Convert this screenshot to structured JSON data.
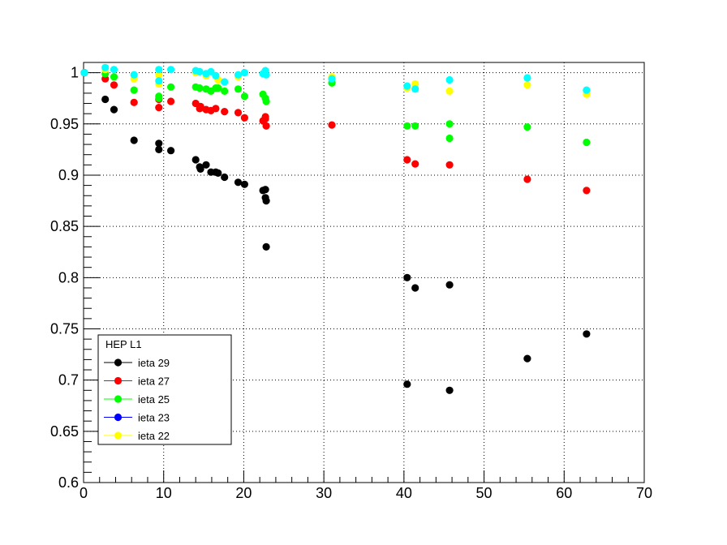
{
  "chart_data": {
    "type": "scatter",
    "title": "",
    "xlabel": "",
    "ylabel": "",
    "xlim": [
      0,
      70
    ],
    "ylim": [
      0.6,
      1.01
    ],
    "x_ticks": [
      "0",
      "10",
      "20",
      "30",
      "40",
      "50",
      "60",
      "70"
    ],
    "y_ticks": [
      "0.6",
      "0.65",
      "0.7",
      "0.75",
      "0.8",
      "0.85",
      "0.9",
      "0.95",
      "1"
    ],
    "grid": true,
    "legend": {
      "title": "HEP L1",
      "placement": "bottom-left",
      "entries": [
        "ieta 29",
        "ieta 27",
        "ieta 25",
        "ieta 23",
        "ieta 22"
      ]
    },
    "series": [
      {
        "name": "ieta 29",
        "color": "#000000",
        "points": [
          [
            0.1,
            1.0
          ],
          [
            2.7,
            0.974
          ],
          [
            3.8,
            0.964
          ],
          [
            6.3,
            0.934
          ],
          [
            9.4,
            0.931
          ],
          [
            9.4,
            0.925
          ],
          [
            10.9,
            0.924
          ],
          [
            14.0,
            0.915
          ],
          [
            14.5,
            0.908
          ],
          [
            14.6,
            0.906
          ],
          [
            15.3,
            0.91
          ],
          [
            15.9,
            0.903
          ],
          [
            16.5,
            0.903
          ],
          [
            16.8,
            0.902
          ],
          [
            17.6,
            0.898
          ],
          [
            19.3,
            0.893
          ],
          [
            20.1,
            0.891
          ],
          [
            22.4,
            0.885
          ],
          [
            22.7,
            0.886
          ],
          [
            22.7,
            0.878
          ],
          [
            22.8,
            0.875
          ],
          [
            22.8,
            0.83
          ],
          [
            40.4,
            0.8
          ],
          [
            40.4,
            0.696
          ],
          [
            41.4,
            0.79
          ],
          [
            45.7,
            0.793
          ],
          [
            45.7,
            0.69
          ],
          [
            55.4,
            0.721
          ],
          [
            62.8,
            0.745
          ]
        ]
      },
      {
        "name": "ieta 27",
        "color": "#ff0000",
        "points": [
          [
            2.7,
            0.994
          ],
          [
            3.8,
            0.988
          ],
          [
            6.3,
            0.971
          ],
          [
            9.4,
            0.974
          ],
          [
            9.4,
            0.966
          ],
          [
            10.9,
            0.972
          ],
          [
            14.0,
            0.97
          ],
          [
            14.5,
            0.965
          ],
          [
            14.6,
            0.967
          ],
          [
            15.3,
            0.964
          ],
          [
            15.9,
            0.963
          ],
          [
            16.5,
            0.965
          ],
          [
            17.6,
            0.962
          ],
          [
            19.3,
            0.961
          ],
          [
            20.1,
            0.956
          ],
          [
            22.4,
            0.953
          ],
          [
            22.7,
            0.957
          ],
          [
            22.7,
            0.955
          ],
          [
            22.8,
            0.948
          ],
          [
            31.0,
            0.949
          ],
          [
            40.4,
            0.915
          ],
          [
            41.4,
            0.911
          ],
          [
            45.7,
            0.91
          ],
          [
            55.4,
            0.896
          ],
          [
            62.8,
            0.885
          ]
        ]
      },
      {
        "name": "ieta 25",
        "color": "#00ff00",
        "points": [
          [
            2.7,
            0.999
          ],
          [
            3.8,
            0.996
          ],
          [
            6.3,
            0.983
          ],
          [
            9.4,
            0.977
          ],
          [
            9.4,
            0.975
          ],
          [
            10.9,
            0.986
          ],
          [
            14.0,
            0.986
          ],
          [
            14.5,
            0.985
          ],
          [
            15.3,
            0.984
          ],
          [
            15.9,
            0.982
          ],
          [
            16.5,
            0.985
          ],
          [
            16.8,
            0.985
          ],
          [
            17.6,
            0.982
          ],
          [
            19.3,
            0.984
          ],
          [
            20.1,
            0.977
          ],
          [
            22.4,
            0.979
          ],
          [
            22.7,
            0.975
          ],
          [
            22.8,
            0.972
          ],
          [
            31.0,
            0.99
          ],
          [
            40.4,
            0.948
          ],
          [
            41.4,
            0.948
          ],
          [
            45.7,
            0.95
          ],
          [
            45.7,
            0.936
          ],
          [
            55.4,
            0.947
          ],
          [
            62.8,
            0.932
          ]
        ]
      },
      {
        "name": "ieta 23",
        "color": "#0000ff",
        "points": []
      },
      {
        "name": "ieta 22",
        "color": "#ffff00",
        "points": [
          [
            2.7,
            1.003
          ],
          [
            6.3,
            0.994
          ],
          [
            9.4,
            0.998
          ],
          [
            9.4,
            0.989
          ],
          [
            14.0,
            1.0
          ],
          [
            15.3,
            0.997
          ],
          [
            16.8,
            0.993
          ],
          [
            19.3,
            0.996
          ],
          [
            31.0,
            0.996
          ],
          [
            40.4,
            0.985
          ],
          [
            41.4,
            0.989
          ],
          [
            45.7,
            0.982
          ],
          [
            55.4,
            0.988
          ],
          [
            62.8,
            0.979
          ]
        ]
      },
      {
        "name": "",
        "color": "#00ffff",
        "points": [
          [
            0.1,
            1.0
          ],
          [
            2.7,
            1.005
          ],
          [
            3.8,
            1.003
          ],
          [
            6.3,
            0.998
          ],
          [
            9.4,
            1.003
          ],
          [
            9.4,
            0.992
          ],
          [
            10.9,
            1.003
          ],
          [
            14.0,
            1.002
          ],
          [
            14.5,
            1.001
          ],
          [
            15.3,
            0.999
          ],
          [
            15.9,
            1.001
          ],
          [
            16.5,
            0.997
          ],
          [
            17.6,
            0.991
          ],
          [
            19.3,
            0.998
          ],
          [
            20.1,
            1.0
          ],
          [
            22.4,
            0.999
          ],
          [
            22.7,
            1.002
          ],
          [
            22.8,
            0.998
          ],
          [
            31.0,
            0.994
          ],
          [
            40.4,
            0.987
          ],
          [
            41.4,
            0.984
          ],
          [
            45.7,
            0.993
          ],
          [
            55.4,
            0.995
          ],
          [
            62.8,
            0.983
          ]
        ]
      }
    ]
  }
}
